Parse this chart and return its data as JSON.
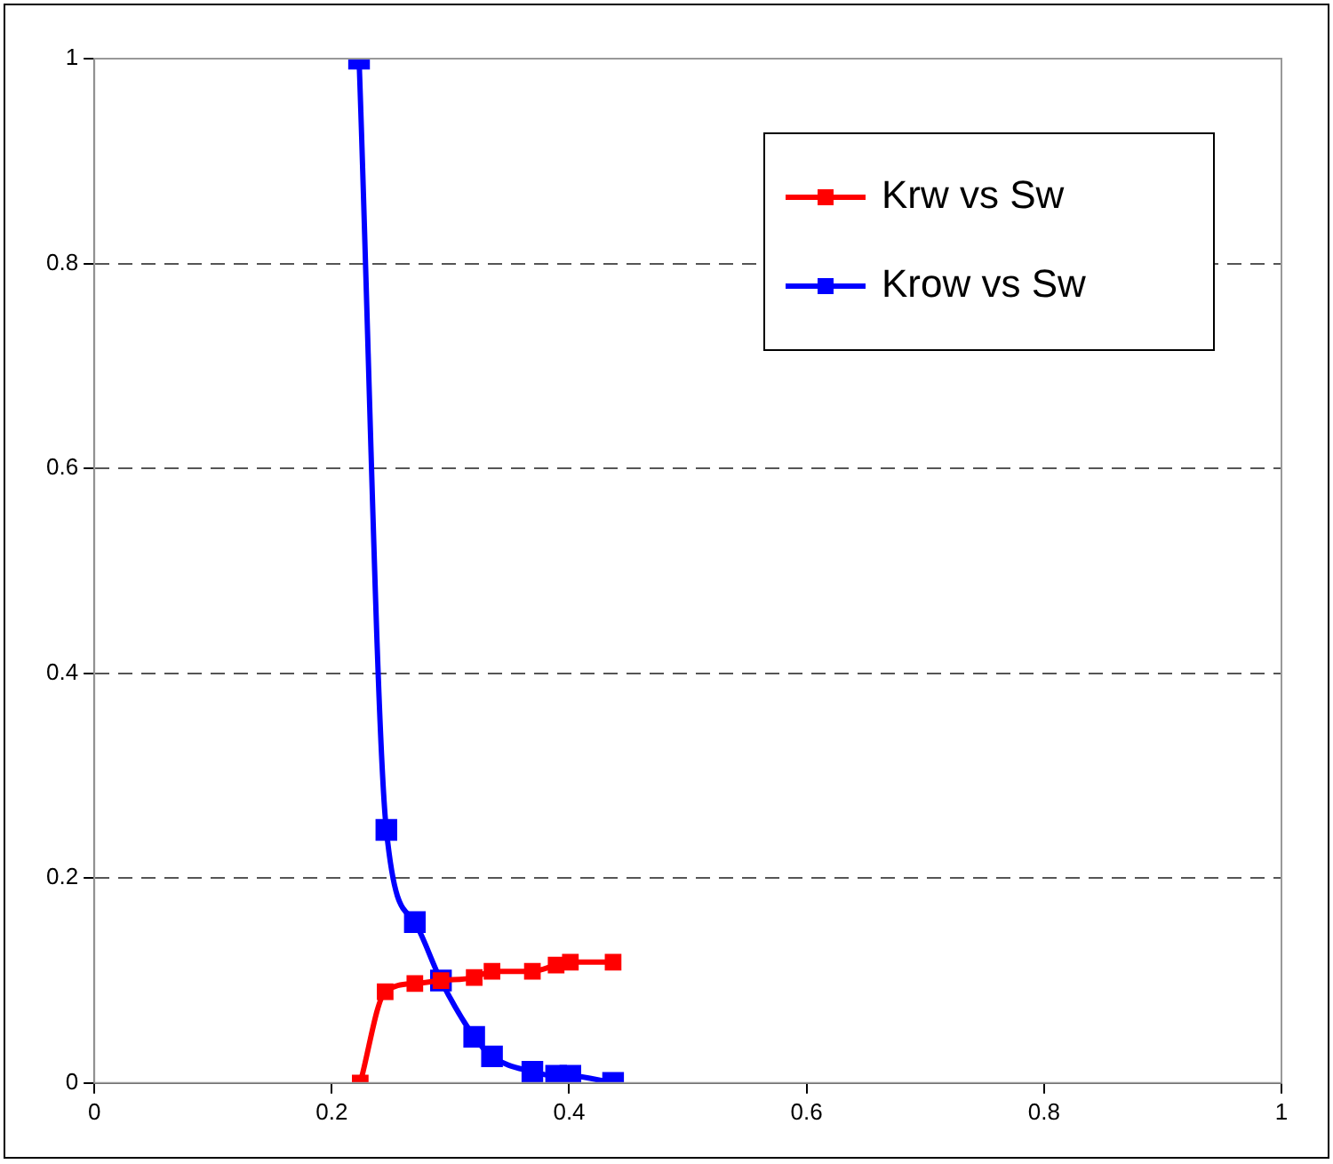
{
  "chart_data": {
    "type": "line",
    "xlim": [
      0,
      1
    ],
    "xticks": [
      0,
      0.2,
      0.4,
      0.6,
      0.8,
      1
    ],
    "ylim": [
      0,
      1
    ],
    "yticks": [
      0,
      0.2,
      0.4,
      0.6,
      0.8,
      1
    ],
    "grid": "y",
    "legend": "top right",
    "marker": "square",
    "line_style": "solid",
    "series": [
      {
        "name": "Krw vs Sw",
        "color": "#ff0000",
        "x": [
          0.224,
          0.245,
          0.27,
          0.292,
          0.32,
          0.335,
          0.369,
          0.389,
          0.401,
          0.437
        ],
        "values": [
          0,
          0.089,
          0.097,
          0.1,
          0.103,
          0.109,
          0.109,
          0.115,
          0.118,
          0.118
        ]
      },
      {
        "name": "Krow vs Sw",
        "color": "#0000ff",
        "x": [
          0.223,
          0.246,
          0.27,
          0.292,
          0.32,
          0.335,
          0.369,
          0.389,
          0.401,
          0.437
        ],
        "values": [
          1,
          0.247,
          0.157,
          0.1,
          0.045,
          0.026,
          0.011,
          0.007,
          0.007,
          0
        ]
      }
    ]
  }
}
